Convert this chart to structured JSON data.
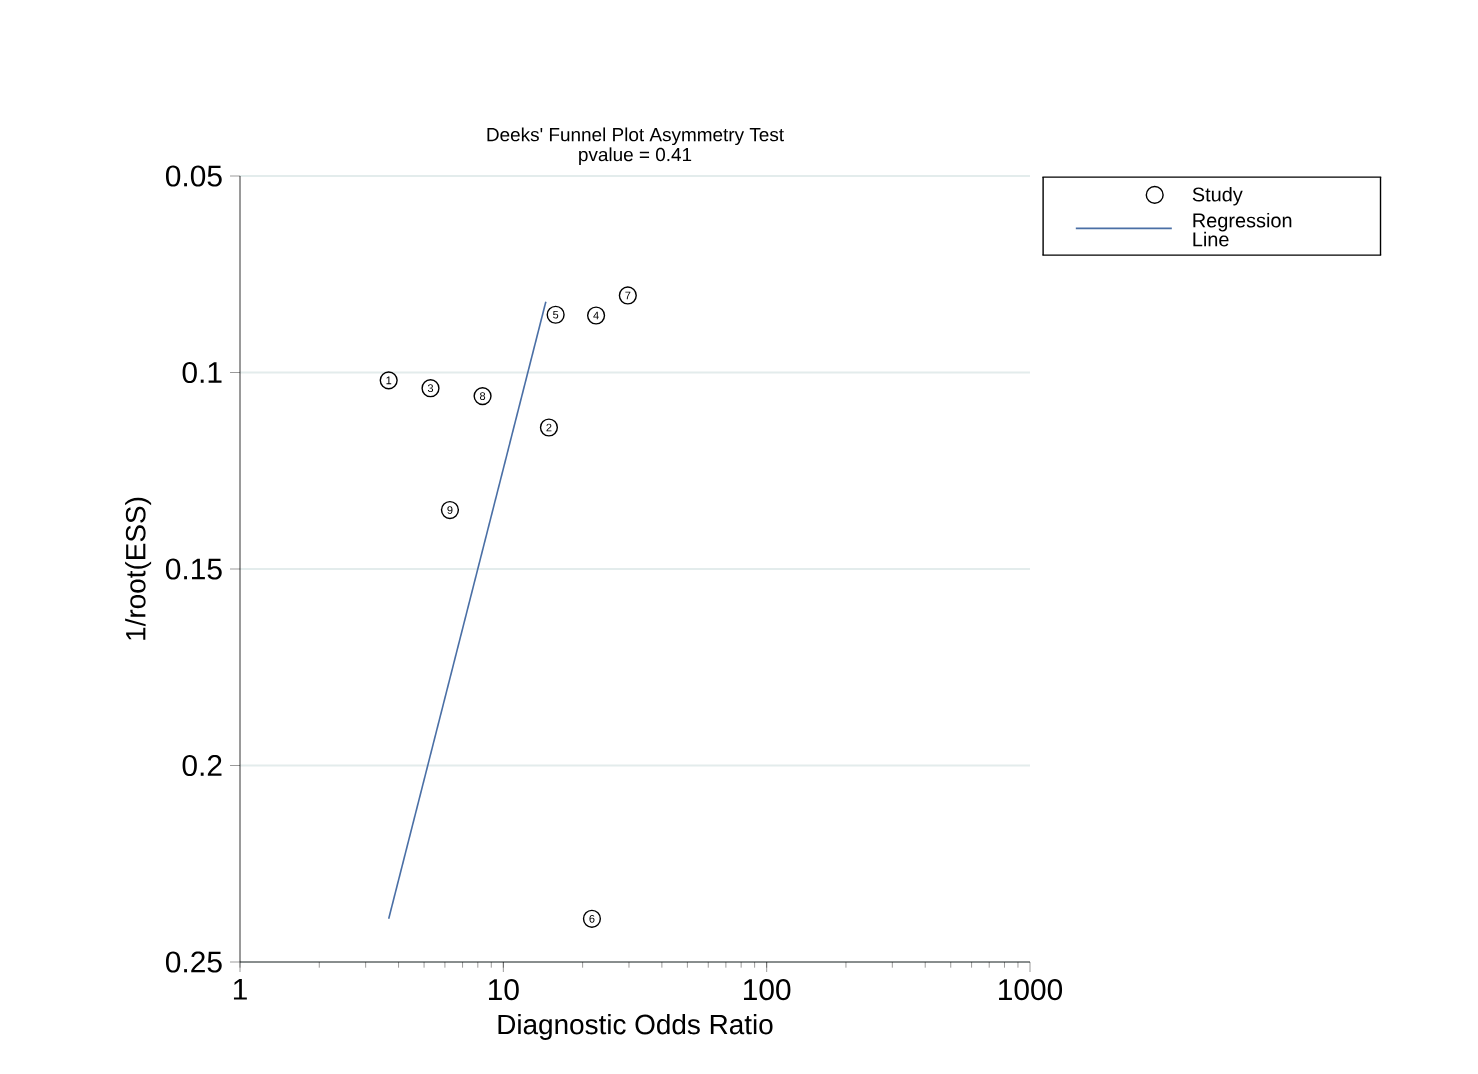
{
  "chart_data": {
    "type": "scatter",
    "title": "Deeks' Funnel Plot Asymmetry Test",
    "subtitle": "pvalue =  0.41",
    "xlabel": "Diagnostic Odds Ratio",
    "ylabel": "1/root(ESS)",
    "series": [
      {
        "name": "Study",
        "marker": "circle",
        "color": "#000000",
        "x": [
          3.67,
          14.9,
          5.29,
          22.5,
          15.8,
          21.7,
          29.7,
          8.34,
          6.27
        ],
        "values": [
          0.102,
          0.114,
          0.104,
          0.0855,
          0.0853,
          0.239,
          0.0804,
          0.106,
          0.135
        ]
      },
      {
        "name": "Regression Line",
        "type": "line",
        "color": "#4a6fa5",
        "line_style": "solid",
        "x": [
          3.67,
          14.5
        ],
        "values": [
          0.239,
          0.082
        ]
      }
    ],
    "annotations": [
      {
        "text": "1",
        "x": 3.67,
        "y": 0.102
      },
      {
        "text": "2",
        "x": 14.9,
        "y": 0.114
      },
      {
        "text": "3",
        "x": 5.29,
        "y": 0.104
      },
      {
        "text": "4",
        "x": 22.5,
        "y": 0.0855
      },
      {
        "text": "5",
        "x": 15.8,
        "y": 0.0853
      },
      {
        "text": "6",
        "x": 21.7,
        "y": 0.239
      },
      {
        "text": "7",
        "x": 29.7,
        "y": 0.0804
      },
      {
        "text": "8",
        "x": 8.34,
        "y": 0.106
      },
      {
        "text": "9",
        "x": 6.27,
        "y": 0.135
      }
    ],
    "log": "x",
    "xlim": [
      1,
      1000
    ],
    "xticks": [
      1,
      10,
      100,
      1000
    ],
    "ylim": [
      0.25,
      0.05
    ],
    "yticks": [
      0.05,
      0.1,
      0.15,
      0.2,
      0.25
    ],
    "grid": "y",
    "legend": "top right"
  }
}
